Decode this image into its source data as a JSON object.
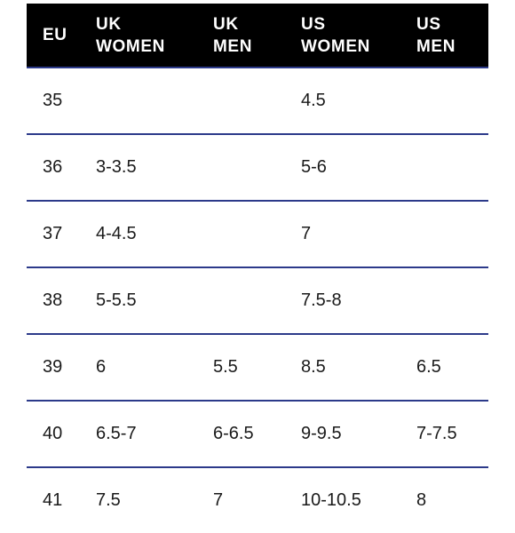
{
  "table": {
    "headers": [
      [
        "EU"
      ],
      [
        "UK",
        "WOMEN"
      ],
      [
        "UK",
        "MEN"
      ],
      [
        "US",
        "WOMEN"
      ],
      [
        "US",
        "MEN"
      ]
    ],
    "rows": [
      [
        "35",
        "",
        "",
        "4.5",
        ""
      ],
      [
        "36",
        "3-3.5",
        "",
        "5-6",
        ""
      ],
      [
        "37",
        "4-4.5",
        "",
        "7",
        ""
      ],
      [
        "38",
        "5-5.5",
        "",
        "7.5-8",
        ""
      ],
      [
        "39",
        "6",
        "5.5",
        "8.5",
        "6.5"
      ],
      [
        "40",
        "6.5-7",
        "6-6.5",
        "9-9.5",
        "7-7.5"
      ],
      [
        "41",
        "7.5",
        "7",
        "10-10.5",
        "8"
      ]
    ]
  },
  "colors": {
    "header_background": "#000000",
    "header_text": "#ffffff",
    "divider": "#2c3a8a",
    "cell_text": "#1a1a1a"
  }
}
